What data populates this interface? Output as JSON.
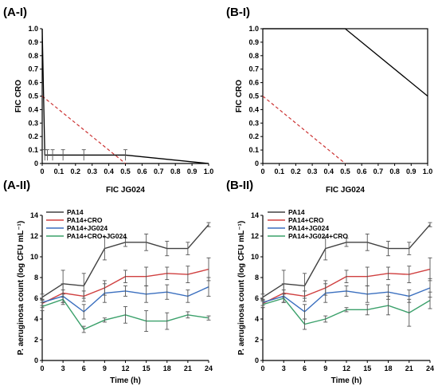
{
  "panels": {
    "a1_label": "(A-I)",
    "b1_label": "(B-I)",
    "a2_label": "(A-II)",
    "b2_label": "(B-II)"
  },
  "colors": {
    "PA14": "#404040",
    "PA14+CRO": "#d04040",
    "PA14+JG024": "#3a6fbf",
    "PA14+CRO+JG024": "#3aa06a",
    "reference_line": "#cc3333"
  },
  "chart_data": [
    {
      "id": "A-I",
      "type": "line",
      "title": "",
      "xlabel": "FIC JG024",
      "ylabel": "FIC CRO",
      "xlim": [
        0,
        1
      ],
      "ylim": [
        0,
        1
      ],
      "xticks": [
        "0",
        "0.1",
        "0.2",
        "0.3",
        "0.4",
        "0.5",
        "0.6",
        "0.7",
        "0.8",
        "0.9",
        "1.0"
      ],
      "yticks": [
        "0",
        "0.1",
        "0.2",
        "0.3",
        "0.4",
        "0.5",
        "0.6",
        "0.7",
        "0.8",
        "0.9",
        "1.0"
      ],
      "isobologram": {
        "x": [
          0,
          0.0156,
          0.0313,
          0.0625,
          0.125,
          0.25,
          0.5,
          1.0
        ],
        "y": [
          1.0,
          0.0625,
          0.0625,
          0.0625,
          0.0625,
          0.0625,
          0.0625,
          0
        ],
        "err": [
          0,
          0.04,
          0.04,
          0.04,
          0.04,
          0.04,
          0.04,
          0
        ]
      },
      "additivity_line": {
        "x": [
          0,
          0.5
        ],
        "y": [
          0.5,
          0
        ]
      }
    },
    {
      "id": "B-I",
      "type": "line",
      "title": "",
      "xlabel": "FIC JG024",
      "ylabel": "FIC CRO",
      "xlim": [
        0,
        1
      ],
      "ylim": [
        0,
        1
      ],
      "xticks": [
        "0",
        "0.1",
        "0.2",
        "0.3",
        "0.4",
        "0.5",
        "0.6",
        "0.7",
        "0.8",
        "0.9",
        "1.0"
      ],
      "yticks": [
        "0",
        "0.1",
        "0.2",
        "0.3",
        "0.4",
        "0.5",
        "0.6",
        "0.7",
        "0.8",
        "0.9",
        "1.0"
      ],
      "isobologram": {
        "x": [
          0,
          0.5,
          1.0
        ],
        "y": [
          1.0,
          1.0,
          0.5
        ],
        "err": [
          0,
          0,
          0
        ]
      },
      "additivity_line": {
        "x": [
          0,
          0.5
        ],
        "y": [
          0.5,
          0
        ]
      }
    },
    {
      "id": "A-II",
      "type": "line",
      "title": "",
      "xlabel": "Time (h)",
      "ylabel": "P. aeruginosa count (log CFU mL⁻¹)",
      "x": [
        0,
        3,
        6,
        9,
        12,
        15,
        18,
        21,
        24
      ],
      "xlim": [
        0,
        24
      ],
      "ylim": [
        0,
        14
      ],
      "xticks": [
        "0",
        "3",
        "6",
        "9",
        "12",
        "15",
        "18",
        "21",
        "24"
      ],
      "yticks": [
        "0",
        "2",
        "4",
        "6",
        "8",
        "10",
        "12",
        "14"
      ],
      "legend_position": "top-left",
      "series": [
        {
          "name": "PA14",
          "color": "#404040",
          "values": [
            6.1,
            7.4,
            7.2,
            10.8,
            11.4,
            11.4,
            10.8,
            10.8,
            13.1
          ],
          "err": [
            0.3,
            1.3,
            1.2,
            1.1,
            0.4,
            0.8,
            0.7,
            0.6,
            0.2
          ]
        },
        {
          "name": "PA14+CRO",
          "color": "#d04040",
          "values": [
            5.5,
            6.5,
            6.2,
            7.0,
            8.1,
            8.1,
            8.4,
            8.3,
            8.8
          ],
          "err": [
            0.4,
            0.9,
            0.5,
            0.7,
            0.6,
            0.9,
            0.6,
            0.8,
            1.1
          ]
        },
        {
          "name": "PA14+JG024",
          "color": "#3a6fbf",
          "values": [
            5.6,
            6.2,
            4.7,
            6.5,
            6.7,
            6.4,
            6.6,
            6.2,
            7.1
          ],
          "err": [
            0.3,
            0.6,
            0.7,
            0.9,
            0.5,
            0.8,
            0.7,
            0.6,
            0.9
          ]
        },
        {
          "name": "PA14+CRO+JG024",
          "color": "#3aa06a",
          "values": [
            5.2,
            5.9,
            3.0,
            3.9,
            4.4,
            3.8,
            3.8,
            4.4,
            4.1
          ],
          "err": [
            0.4,
            0.5,
            0.3,
            0.2,
            0.8,
            1.0,
            0.8,
            0.3,
            0.2
          ]
        }
      ]
    },
    {
      "id": "B-II",
      "type": "line",
      "title": "",
      "xlabel": "Time (h)",
      "ylabel": "P. aeruginosa count (log CFU mL⁻¹)",
      "x": [
        0,
        3,
        6,
        9,
        12,
        15,
        18,
        21,
        24
      ],
      "xlim": [
        0,
        24
      ],
      "ylim": [
        0,
        14
      ],
      "xticks": [
        "0",
        "3",
        "6",
        "9",
        "12",
        "15",
        "18",
        "21",
        "24"
      ],
      "yticks": [
        "0",
        "2",
        "4",
        "6",
        "8",
        "10",
        "12",
        "14"
      ],
      "legend_position": "top-left",
      "series": [
        {
          "name": "PA14",
          "color": "#404040",
          "values": [
            6.1,
            7.4,
            7.2,
            10.8,
            11.4,
            11.4,
            10.8,
            10.8,
            13.1
          ],
          "err": [
            0.3,
            1.3,
            1.2,
            1.1,
            0.4,
            0.8,
            0.7,
            0.6,
            0.2
          ]
        },
        {
          "name": "PA14+CRO",
          "color": "#d04040",
          "values": [
            5.5,
            6.5,
            6.2,
            7.0,
            8.1,
            8.1,
            8.4,
            8.3,
            8.8
          ],
          "err": [
            0.4,
            0.9,
            0.5,
            0.7,
            0.6,
            0.9,
            0.6,
            0.8,
            1.1
          ]
        },
        {
          "name": "PA14+JG024",
          "color": "#3a6fbf",
          "values": [
            5.6,
            6.2,
            4.7,
            6.5,
            6.7,
            6.4,
            6.6,
            6.2,
            7.0
          ],
          "err": [
            0.3,
            0.6,
            0.7,
            0.9,
            0.5,
            0.8,
            0.7,
            0.6,
            0.9
          ]
        },
        {
          "name": "PA14+JG024+CRO",
          "color": "#3aa06a",
          "values": [
            5.4,
            6.0,
            3.5,
            4.0,
            4.9,
            4.9,
            5.3,
            4.6,
            5.8
          ],
          "err": [
            0.3,
            0.4,
            0.5,
            0.3,
            0.2,
            0.5,
            0.9,
            1.3,
            0.8
          ]
        }
      ]
    }
  ]
}
